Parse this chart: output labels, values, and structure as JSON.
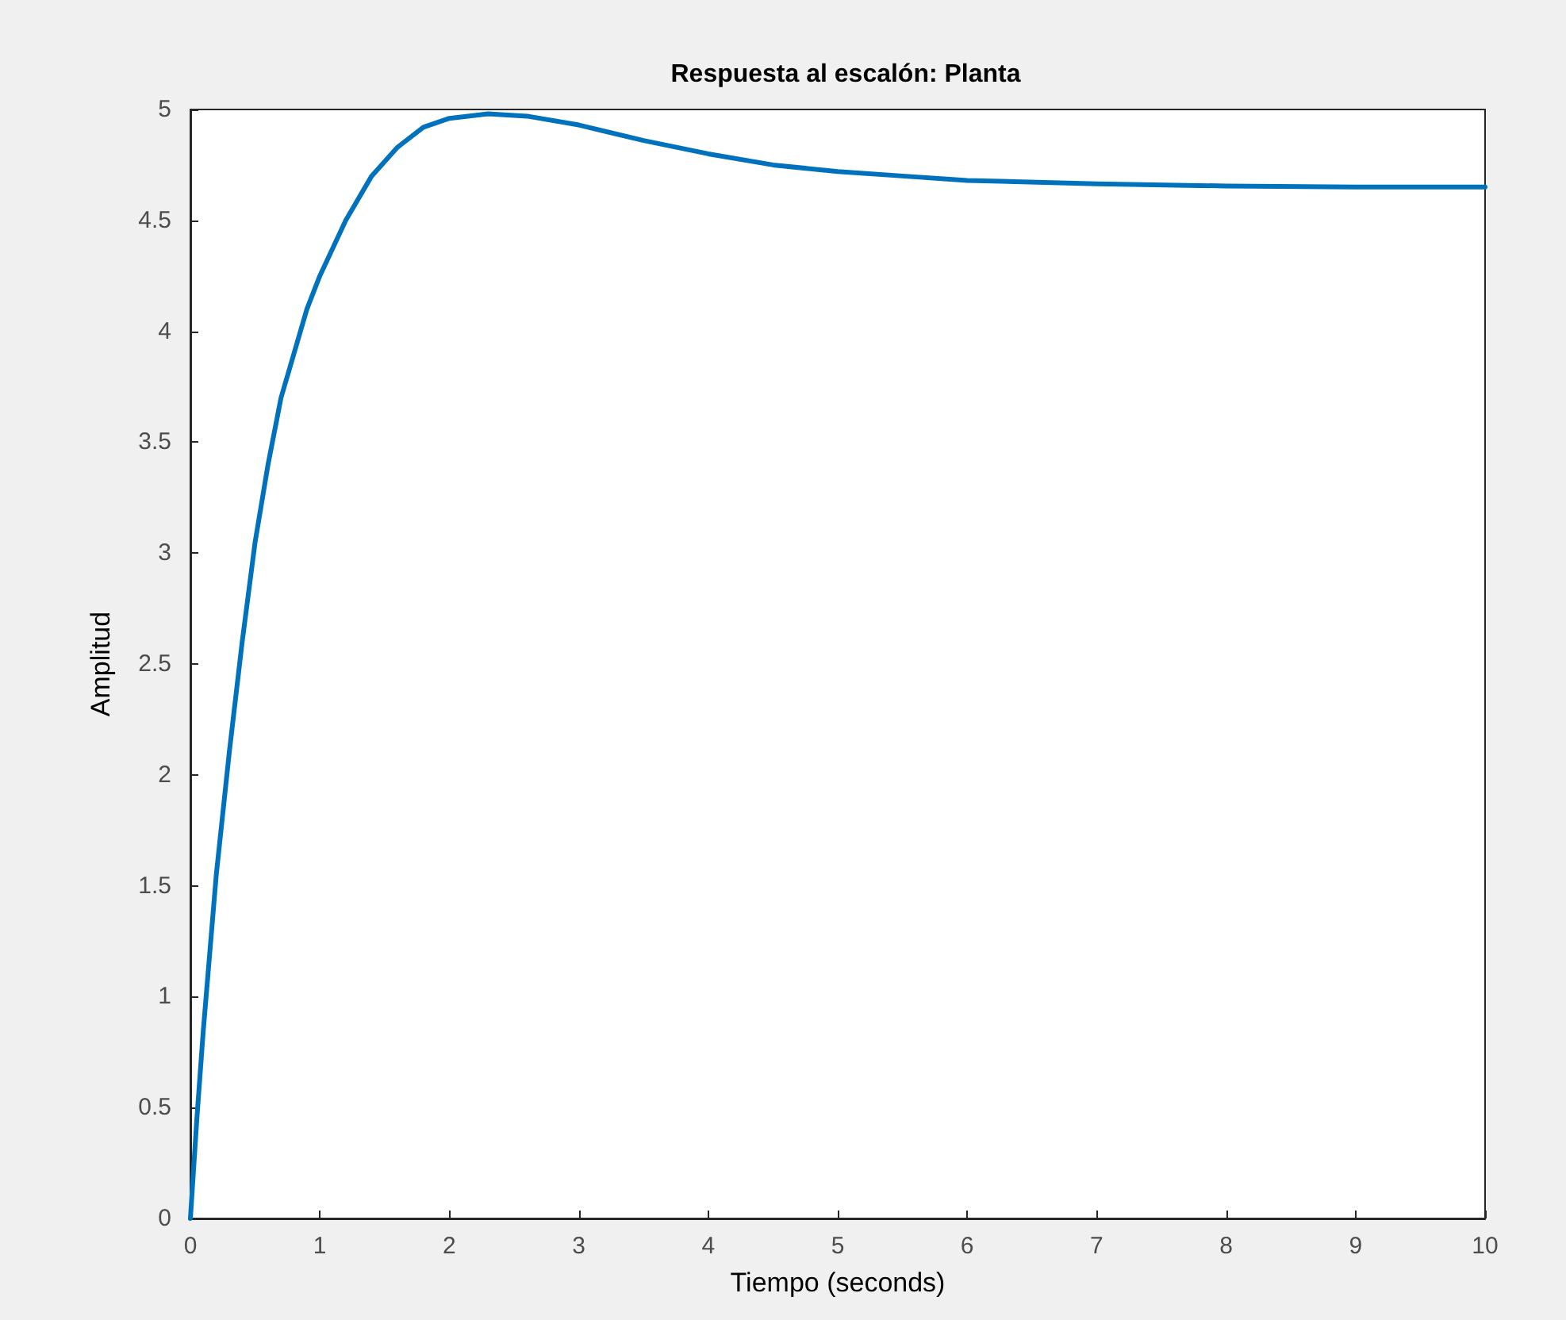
{
  "chart_data": {
    "type": "line",
    "title": "Respuesta al escalón: Planta",
    "xlabel": "Tiempo (seconds)",
    "ylabel": "Amplitud",
    "x": [
      0,
      0.05,
      0.1,
      0.2,
      0.3,
      0.4,
      0.5,
      0.6,
      0.7,
      0.8,
      0.9,
      1.0,
      1.2,
      1.4,
      1.6,
      1.8,
      2.0,
      2.3,
      2.6,
      3.0,
      3.5,
      4.0,
      4.5,
      5.0,
      5.5,
      6.0,
      7.0,
      8.0,
      9.0,
      10.0
    ],
    "series": [
      {
        "color": "#0072bd",
        "values": [
          0,
          0.45,
          0.85,
          1.55,
          2.1,
          2.6,
          3.05,
          3.4,
          3.7,
          3.9,
          4.1,
          4.25,
          4.5,
          4.7,
          4.83,
          4.92,
          4.96,
          4.98,
          4.97,
          4.93,
          4.86,
          4.8,
          4.75,
          4.72,
          4.7,
          4.68,
          4.665,
          4.655,
          4.65,
          4.65
        ]
      }
    ],
    "xlim": [
      0,
      10
    ],
    "xticks": [
      0,
      1,
      2,
      3,
      4,
      5,
      6,
      7,
      8,
      9,
      10
    ],
    "ylim": [
      0,
      5
    ],
    "yticks": [
      0,
      0.5,
      1,
      1.5,
      2,
      2.5,
      3,
      3.5,
      4,
      4.5,
      5
    ]
  }
}
